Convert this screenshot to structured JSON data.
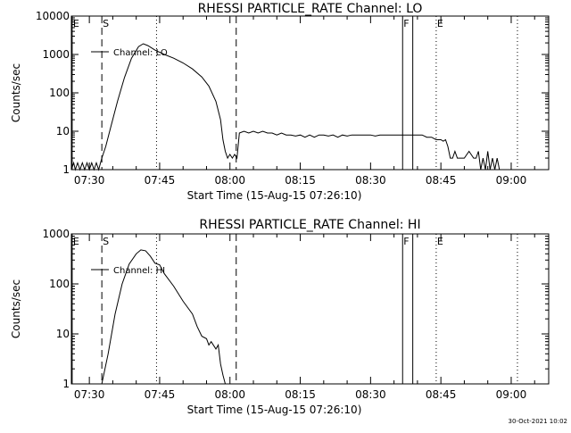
{
  "chart_data": [
    {
      "type": "line",
      "title": "RHESSI PARTICLE_RATE Channel: LO",
      "xlabel": "Start Time (15-Aug-15 07:26:10)",
      "ylabel": "Counts/sec",
      "y_scale": "log",
      "xlim": [
        "07:26:10",
        "09:08:00"
      ],
      "ylim": [
        1,
        10000
      ],
      "x_tick_labels": [
        "07:30",
        "07:45",
        "08:00",
        "08:15",
        "08:30",
        "08:45",
        "09:00"
      ],
      "y_tick_labels": [
        "1",
        "10",
        "100",
        "1000",
        "10000"
      ],
      "legend": "Channel: LO",
      "legend_position": "top-left",
      "markers": [
        {
          "label": "E",
          "time": "07:26:20",
          "style": "solid"
        },
        {
          "label": "S",
          "time": "07:32:40",
          "style": "dashed"
        },
        {
          "label": "",
          "time": "07:44:20",
          "style": "dotted"
        },
        {
          "label": "",
          "time": "08:01:20",
          "style": "dashed"
        },
        {
          "label": "F",
          "time": "08:36:50",
          "style": "solid"
        },
        {
          "label": "",
          "time": "08:39:00",
          "style": "solid"
        },
        {
          "label": "",
          "time": "08:44:00",
          "style": "dotted"
        },
        {
          "label": "E",
          "time": "08:44:00",
          "style": "none"
        },
        {
          "label": "",
          "time": "09:01:20",
          "style": "dotted"
        }
      ],
      "series": [
        {
          "name": "Channel: LO",
          "points": [
            [
              "07:26:10",
              1
            ],
            [
              "07:26:40",
              1.5
            ],
            [
              "07:27:00",
              1
            ],
            [
              "07:27:30",
              1.5
            ],
            [
              "07:28:00",
              1
            ],
            [
              "07:28:30",
              1.5
            ],
            [
              "07:29:00",
              1
            ],
            [
              "07:29:30",
              1.5
            ],
            [
              "07:30:00",
              1
            ],
            [
              "07:30:30",
              1.5
            ],
            [
              "07:31:00",
              1
            ],
            [
              "07:31:30",
              1.5
            ],
            [
              "07:32:00",
              1
            ],
            [
              "07:32:40",
              2
            ],
            [
              "07:33:30",
              4
            ],
            [
              "07:34:30",
              12
            ],
            [
              "07:36:00",
              60
            ],
            [
              "07:37:30",
              250
            ],
            [
              "07:39:00",
              800
            ],
            [
              "07:40:30",
              1600
            ],
            [
              "07:41:30",
              1900
            ],
            [
              "07:42:30",
              1700
            ],
            [
              "07:44:00",
              1300
            ],
            [
              "07:46:00",
              1000
            ],
            [
              "07:48:00",
              800
            ],
            [
              "07:50:00",
              600
            ],
            [
              "07:52:00",
              420
            ],
            [
              "07:54:00",
              260
            ],
            [
              "07:55:30",
              150
            ],
            [
              "07:57:00",
              60
            ],
            [
              "07:58:00",
              20
            ],
            [
              "07:58:30",
              6
            ],
            [
              "07:59:00",
              3
            ],
            [
              "07:59:30",
              2
            ],
            [
              "08:00:00",
              2.5
            ],
            [
              "08:00:30",
              2
            ],
            [
              "08:01:00",
              2.5
            ],
            [
              "08:01:30",
              2
            ],
            [
              "08:02:00",
              9
            ],
            [
              "08:03:00",
              10
            ],
            [
              "08:04:00",
              9
            ],
            [
              "08:05:00",
              10
            ],
            [
              "08:06:00",
              9
            ],
            [
              "08:07:00",
              10
            ],
            [
              "08:08:00",
              9
            ],
            [
              "08:09:00",
              9
            ],
            [
              "08:10:00",
              8
            ],
            [
              "08:11:00",
              9
            ],
            [
              "08:12:00",
              8
            ],
            [
              "08:13:00",
              8
            ],
            [
              "08:14:00",
              7.5
            ],
            [
              "08:15:00",
              8
            ],
            [
              "08:16:00",
              7
            ],
            [
              "08:17:00",
              8
            ],
            [
              "08:18:00",
              7
            ],
            [
              "08:19:00",
              8
            ],
            [
              "08:20:00",
              8
            ],
            [
              "08:21:00",
              7.5
            ],
            [
              "08:22:00",
              8
            ],
            [
              "08:23:00",
              7
            ],
            [
              "08:24:00",
              8
            ],
            [
              "08:25:00",
              7.5
            ],
            [
              "08:26:00",
              8
            ],
            [
              "08:27:00",
              8
            ],
            [
              "08:28:00",
              8
            ],
            [
              "08:29:00",
              8
            ],
            [
              "08:30:00",
              8
            ],
            [
              "08:31:00",
              7.5
            ],
            [
              "08:32:00",
              8
            ],
            [
              "08:33:00",
              8
            ],
            [
              "08:34:00",
              8
            ],
            [
              "08:35:00",
              8
            ],
            [
              "08:36:00",
              8
            ],
            [
              "08:37:00",
              8
            ],
            [
              "08:38:00",
              8
            ],
            [
              "08:39:00",
              8
            ],
            [
              "08:40:00",
              8
            ],
            [
              "08:41:00",
              8
            ],
            [
              "08:42:00",
              7
            ],
            [
              "08:43:00",
              7
            ],
            [
              "08:44:00",
              6
            ],
            [
              "08:45:00",
              6
            ],
            [
              "08:45:30",
              5.5
            ],
            [
              "08:46:00",
              6
            ],
            [
              "08:46:30",
              4
            ],
            [
              "08:47:00",
              2
            ],
            [
              "08:47:30",
              2
            ],
            [
              "08:48:00",
              3
            ],
            [
              "08:48:30",
              2
            ],
            [
              "08:49:00",
              2
            ],
            [
              "08:50:00",
              2
            ],
            [
              "08:51:00",
              3
            ],
            [
              "08:52:00",
              2
            ],
            [
              "08:52:30",
              2
            ],
            [
              "08:53:00",
              3
            ],
            [
              "08:53:30",
              1
            ],
            [
              "08:54:00",
              2
            ],
            [
              "08:54:30",
              1
            ],
            [
              "08:55:00",
              3
            ],
            [
              "08:55:30",
              1
            ],
            [
              "08:56:00",
              2
            ],
            [
              "08:56:30",
              1
            ],
            [
              "08:57:00",
              2
            ],
            [
              "08:57:30",
              1
            ]
          ]
        }
      ]
    },
    {
      "type": "line",
      "title": "RHESSI PARTICLE_RATE Channel: HI",
      "xlabel": "Start Time (15-Aug-15 07:26:10)",
      "ylabel": "Counts/sec",
      "y_scale": "log",
      "xlim": [
        "07:26:10",
        "09:08:00"
      ],
      "ylim": [
        1,
        1000
      ],
      "x_tick_labels": [
        "07:30",
        "07:45",
        "08:00",
        "08:15",
        "08:30",
        "08:45",
        "09:00"
      ],
      "y_tick_labels": [
        "1",
        "10",
        "100",
        "1000"
      ],
      "legend": "Channel: HI",
      "legend_position": "top-left",
      "markers": [
        {
          "label": "E",
          "time": "07:26:20",
          "style": "solid"
        },
        {
          "label": "S",
          "time": "07:32:40",
          "style": "dashed"
        },
        {
          "label": "",
          "time": "07:44:20",
          "style": "dotted"
        },
        {
          "label": "",
          "time": "08:01:20",
          "style": "dashed"
        },
        {
          "label": "F",
          "time": "08:36:50",
          "style": "solid"
        },
        {
          "label": "",
          "time": "08:39:00",
          "style": "solid"
        },
        {
          "label": "",
          "time": "08:44:00",
          "style": "dotted"
        },
        {
          "label": "E",
          "time": "08:44:00",
          "style": "none"
        },
        {
          "label": "",
          "time": "09:01:20",
          "style": "dotted"
        }
      ],
      "series": [
        {
          "name": "Channel: HI",
          "points": [
            [
              "07:32:40",
              1
            ],
            [
              "07:34:00",
              4
            ],
            [
              "07:35:30",
              25
            ],
            [
              "07:37:00",
              100
            ],
            [
              "07:38:30",
              250
            ],
            [
              "07:40:00",
              400
            ],
            [
              "07:41:00",
              480
            ],
            [
              "07:42:00",
              460
            ],
            [
              "07:43:00",
              360
            ],
            [
              "07:44:00",
              260
            ],
            [
              "07:45:00",
              240
            ],
            [
              "07:46:00",
              160
            ],
            [
              "07:48:00",
              90
            ],
            [
              "07:50:00",
              45
            ],
            [
              "07:52:00",
              25
            ],
            [
              "07:53:00",
              14
            ],
            [
              "07:54:00",
              9
            ],
            [
              "07:55:00",
              8
            ],
            [
              "07:55:30",
              6
            ],
            [
              "07:56:00",
              7
            ],
            [
              "07:57:00",
              5
            ],
            [
              "07:57:30",
              6
            ],
            [
              "07:58:00",
              2.5
            ],
            [
              "07:58:30",
              1.5
            ],
            [
              "07:59:00",
              1
            ]
          ]
        }
      ]
    }
  ],
  "footer": {
    "timestamp": "30-Oct-2021 10:02"
  }
}
